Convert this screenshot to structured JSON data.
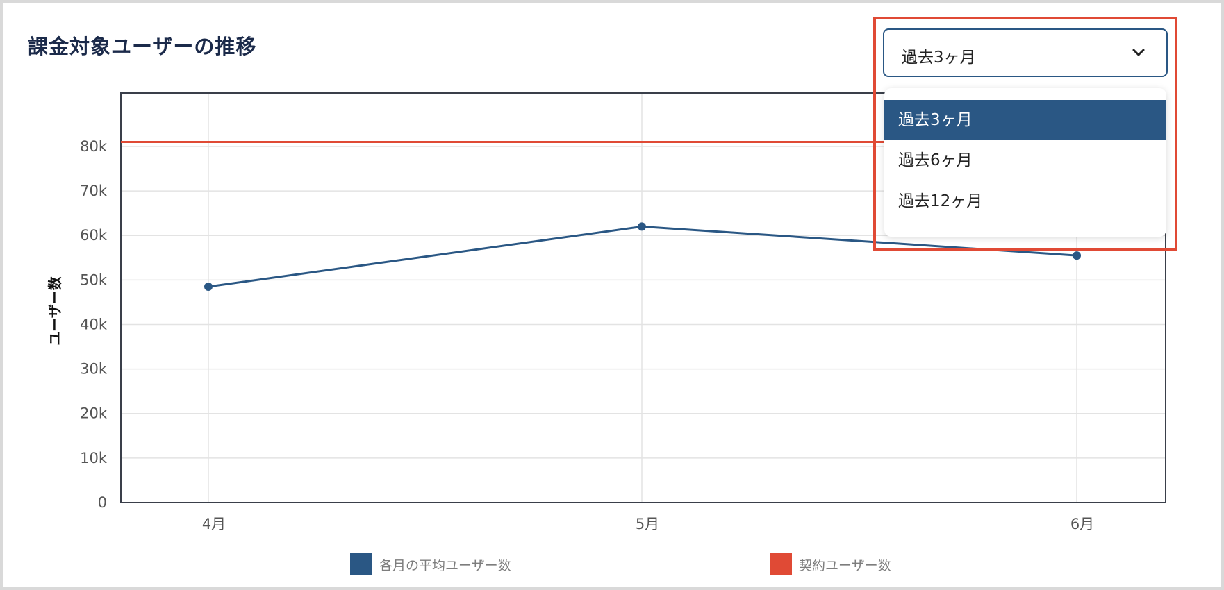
{
  "page": {
    "title": "課金対象ユーザーの推移"
  },
  "period_select": {
    "value": "過去3ヶ月",
    "options": [
      {
        "label": "過去3ヶ月",
        "selected": true
      },
      {
        "label": "過去6ヶ月",
        "selected": false
      },
      {
        "label": "過去12ヶ月",
        "selected": false
      }
    ]
  },
  "chart_data": {
    "type": "line",
    "title": "課金対象ユーザーの推移",
    "xlabel": "",
    "ylabel": "ユーザー数",
    "categories": [
      "4月",
      "5月",
      "6月"
    ],
    "y_ticks": [
      "0",
      "10k",
      "20k",
      "30k",
      "40k",
      "50k",
      "60k",
      "70k",
      "80k"
    ],
    "ylim": [
      0,
      92000
    ],
    "grid": true,
    "legend_position": "bottom",
    "series": [
      {
        "name": "各月の平均ユーザー数",
        "type": "line",
        "color": "#2a5784",
        "values": [
          48500,
          62000,
          55500
        ]
      },
      {
        "name": "契約ユーザー数",
        "type": "line",
        "color": "#e04a35",
        "values": [
          81000,
          81000,
          81000
        ]
      }
    ]
  },
  "legend": {
    "items": [
      {
        "label": "各月の平均ユーザー数",
        "color": "#2a5784"
      },
      {
        "label": "契約ユーザー数",
        "color": "#e04a35"
      }
    ]
  },
  "colors": {
    "primary": "#2a5784",
    "accent": "#e04a35"
  }
}
